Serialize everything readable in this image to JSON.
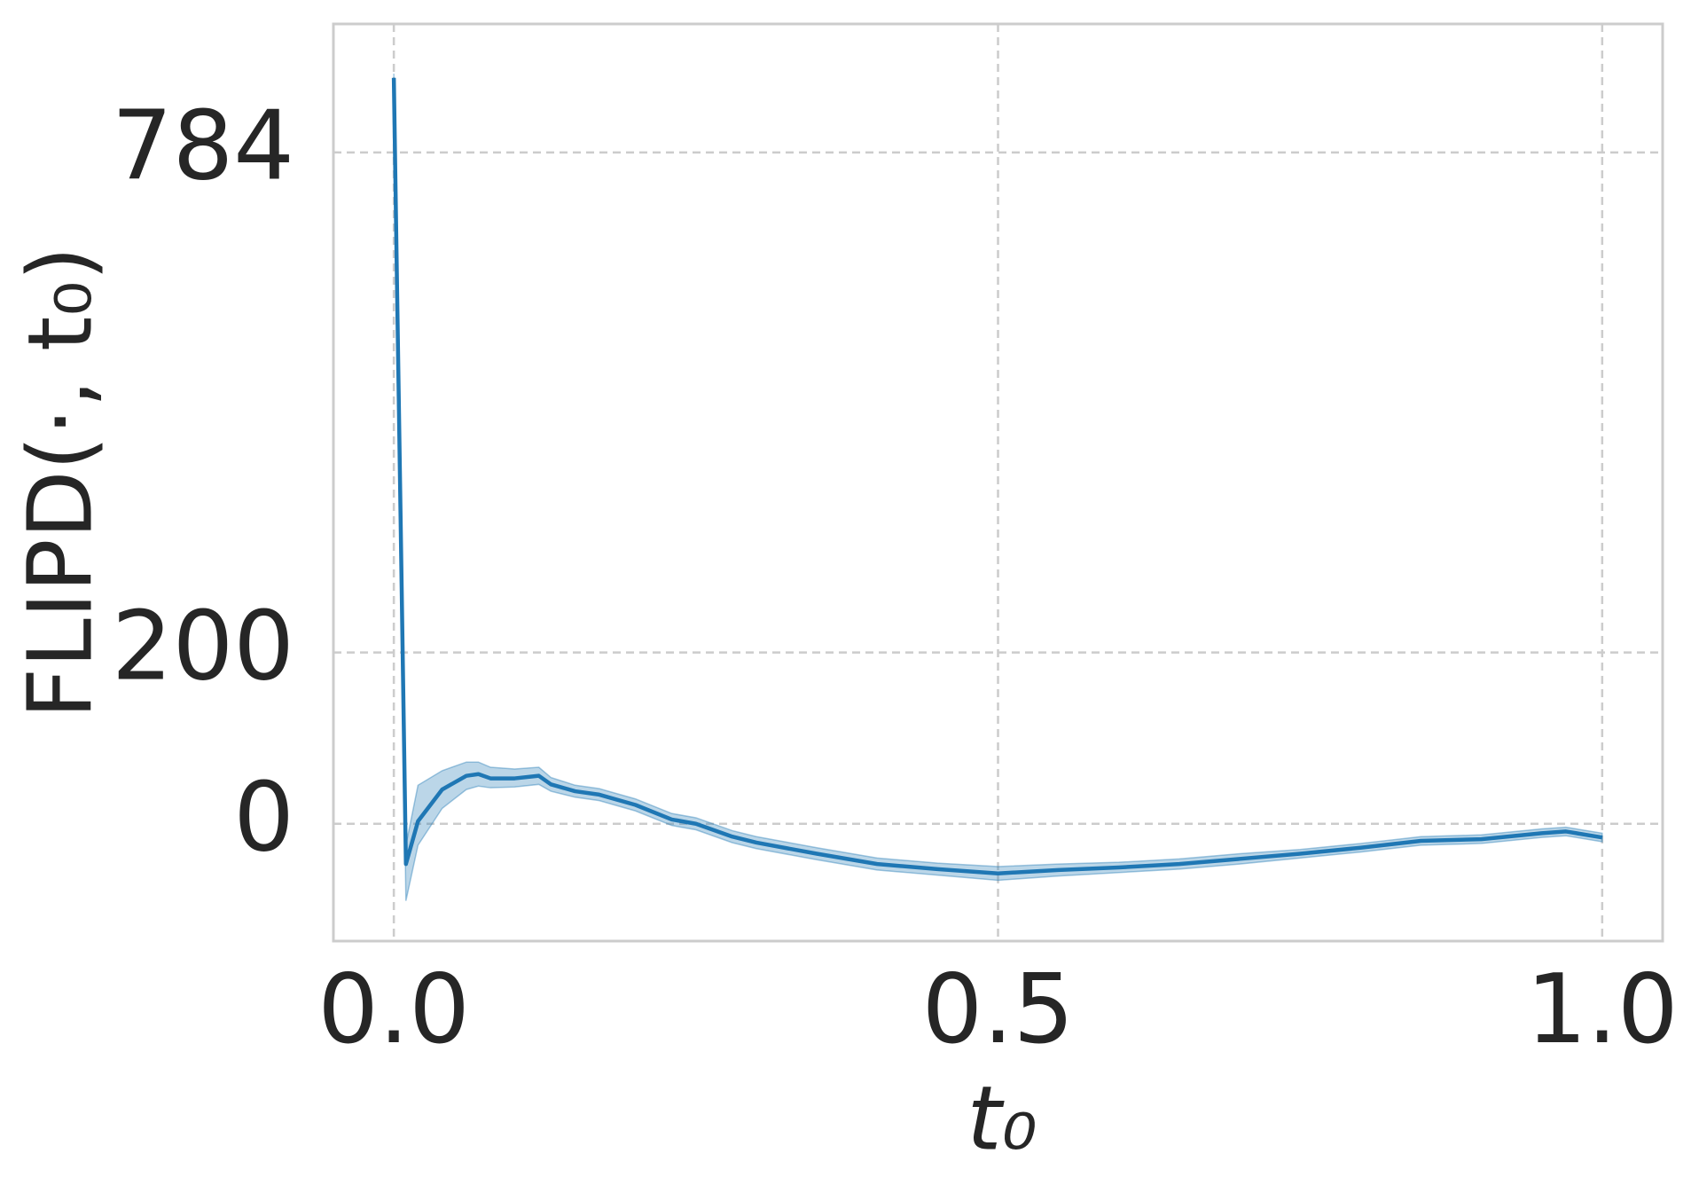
{
  "chart_data": {
    "type": "line",
    "xlabel": "t₀",
    "ylabel": "FLIPD(·, t₀)",
    "x": [
      0,
      0.01,
      0.02,
      0.04,
      0.06,
      0.07,
      0.08,
      0.1,
      0.12,
      0.13,
      0.15,
      0.17,
      0.2,
      0.23,
      0.25,
      0.28,
      0.3,
      0.35,
      0.4,
      0.45,
      0.5,
      0.55,
      0.6,
      0.65,
      0.7,
      0.75,
      0.8,
      0.85,
      0.9,
      0.95,
      0.97,
      1.0
    ],
    "series": [
      {
        "color": "#1f77b4",
        "values": [
          871,
          -47,
          3,
          40,
          56,
          58,
          53,
          53,
          56,
          46,
          38,
          34,
          22,
          5,
          0,
          -15,
          -22,
          -35,
          -47,
          -53,
          -58,
          -54,
          -51,
          -47,
          -41,
          -35,
          -28,
          -20,
          -18,
          -11,
          -9,
          -16
        ],
        "lower": [
          866,
          -90,
          -25,
          18,
          40,
          44,
          42,
          43,
          46,
          38,
          31,
          27,
          15,
          -2,
          -7,
          -22,
          -29,
          -42,
          -54,
          -60,
          -66,
          -61,
          -57,
          -53,
          -47,
          -40,
          -33,
          -25,
          -23,
          -16,
          -14,
          -21
        ],
        "upper": [
          876,
          -25,
          45,
          62,
          72,
          72,
          66,
          64,
          66,
          54,
          45,
          41,
          29,
          12,
          7,
          -8,
          -15,
          -28,
          -40,
          -46,
          -50,
          -47,
          -45,
          -41,
          -35,
          -30,
          -23,
          -15,
          -13,
          -6,
          -4,
          -11
        ]
      }
    ],
    "xlim": [
      -0.05,
      1.05
    ],
    "ylim": [
      -137,
      934
    ],
    "xticks": [
      {
        "value": 0,
        "label": "0.0"
      },
      0.5,
      {
        "value": 1,
        "label": "1.0"
      }
    ],
    "yticks": [
      0,
      200,
      784
    ],
    "grid": true
  }
}
